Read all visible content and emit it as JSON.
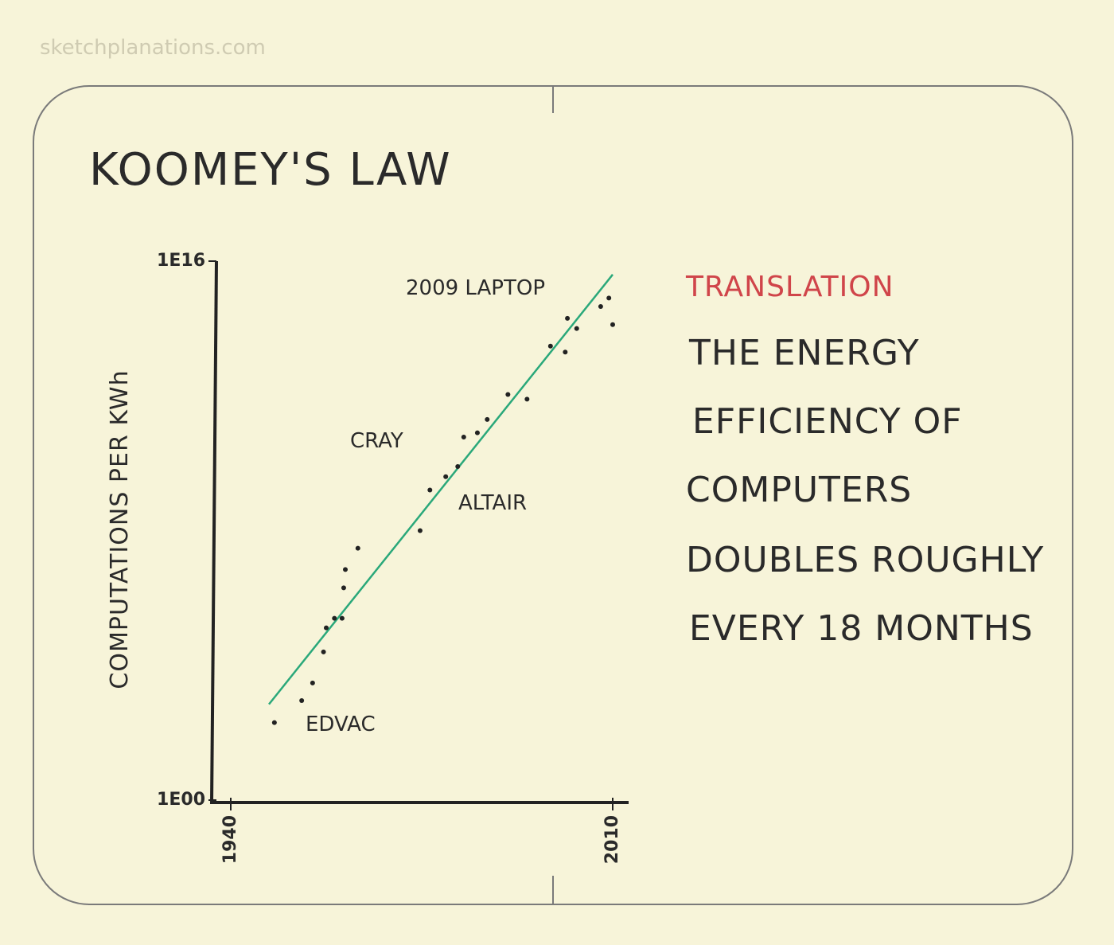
{
  "source": "sketchplanations.com",
  "translation": {
    "heading": "TRANSLATION",
    "lines": [
      "THE ENERGY",
      "EFFICIENCY OF",
      "COMPUTERS",
      "DOUBLES ROUGHLY",
      "EVERY 18 MONTHS"
    ]
  },
  "chart_data": {
    "type": "scatter",
    "title": "KOOMEY'S LAW",
    "y_label": "COMPUTATIONS PER KWh",
    "log_scale_y": true,
    "color": "#222222",
    "xlim": [
      1940,
      2010
    ],
    "xticks": [
      1940,
      2010
    ],
    "ylim": [
      1,
      1e+16
    ],
    "yticks": [
      {
        "value": 1,
        "label": "1E00"
      },
      {
        "value": 1e+16,
        "label": "1E16"
      }
    ],
    "x": [
      1948,
      1953,
      1955,
      1957,
      1957.5,
      1959,
      1960.4,
      1960.7,
      1961,
      1963.3,
      1974.7,
      1976.5,
      1979.4,
      1981.6,
      1982.7,
      1985.2,
      1987,
      1990.8,
      1994.3,
      1998.6,
      2001.3,
      2001.7,
      2003.4,
      2007.8,
      2009.3,
      2010
    ],
    "values": [
      200,
      900,
      3000,
      25000,
      130000,
      250000,
      250000,
      2000000,
      7000000,
      30000000,
      100000000,
      1600000000,
      4000000000,
      8000000000,
      60000000000,
      80000000000,
      200000000000,
      1100000000000,
      800000000000,
      30000000000000,
      20000000000000,
      200000000000000,
      100000000000000,
      450000000000000,
      800000000000000,
      130000000000000
    ],
    "trend": {
      "x": [
        1947,
        2010
      ],
      "values": [
        700,
        4000000000000000
      ],
      "color": "#2aa87a"
    },
    "annotations": [
      "EDVAC",
      "CRAY",
      "ALTAIR",
      "2009 LAPTOP"
    ]
  }
}
